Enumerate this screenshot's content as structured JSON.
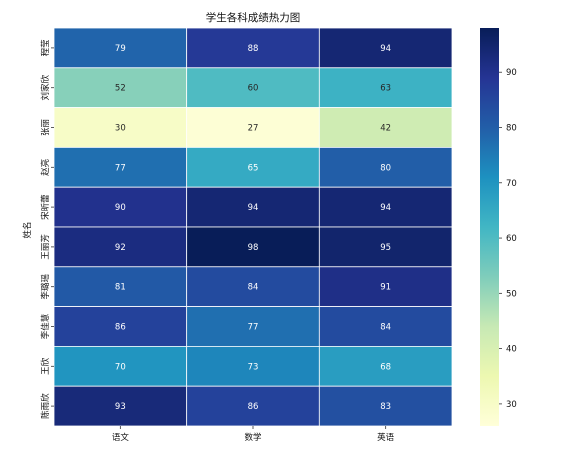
{
  "chart_data": {
    "type": "heatmap",
    "title": "学生各科成绩热力图",
    "xlabel": "",
    "ylabel": "姓名",
    "x_categories": [
      "语文",
      "数学",
      "英语"
    ],
    "y_categories": [
      "程莹",
      "刘家欣",
      "张丽",
      "赵亮",
      "宋昕蕾",
      "王丽芳",
      "李璐瑶",
      "李佳慧",
      "王欣",
      "陈雨欣"
    ],
    "values": [
      [
        79,
        88,
        94
      ],
      [
        52,
        60,
        63
      ],
      [
        30,
        27,
        42
      ],
      [
        77,
        65,
        80
      ],
      [
        90,
        94,
        94
      ],
      [
        92,
        98,
        95
      ],
      [
        81,
        84,
        91
      ],
      [
        86,
        77,
        84
      ],
      [
        70,
        73,
        68
      ],
      [
        93,
        86,
        83
      ]
    ],
    "colorbar": {
      "range": [
        26,
        98
      ],
      "ticks": [
        30,
        40,
        50,
        60,
        70,
        80,
        90
      ],
      "colormap": "YlGnBu"
    },
    "annotations": true,
    "grid": false,
    "legend": "right"
  }
}
